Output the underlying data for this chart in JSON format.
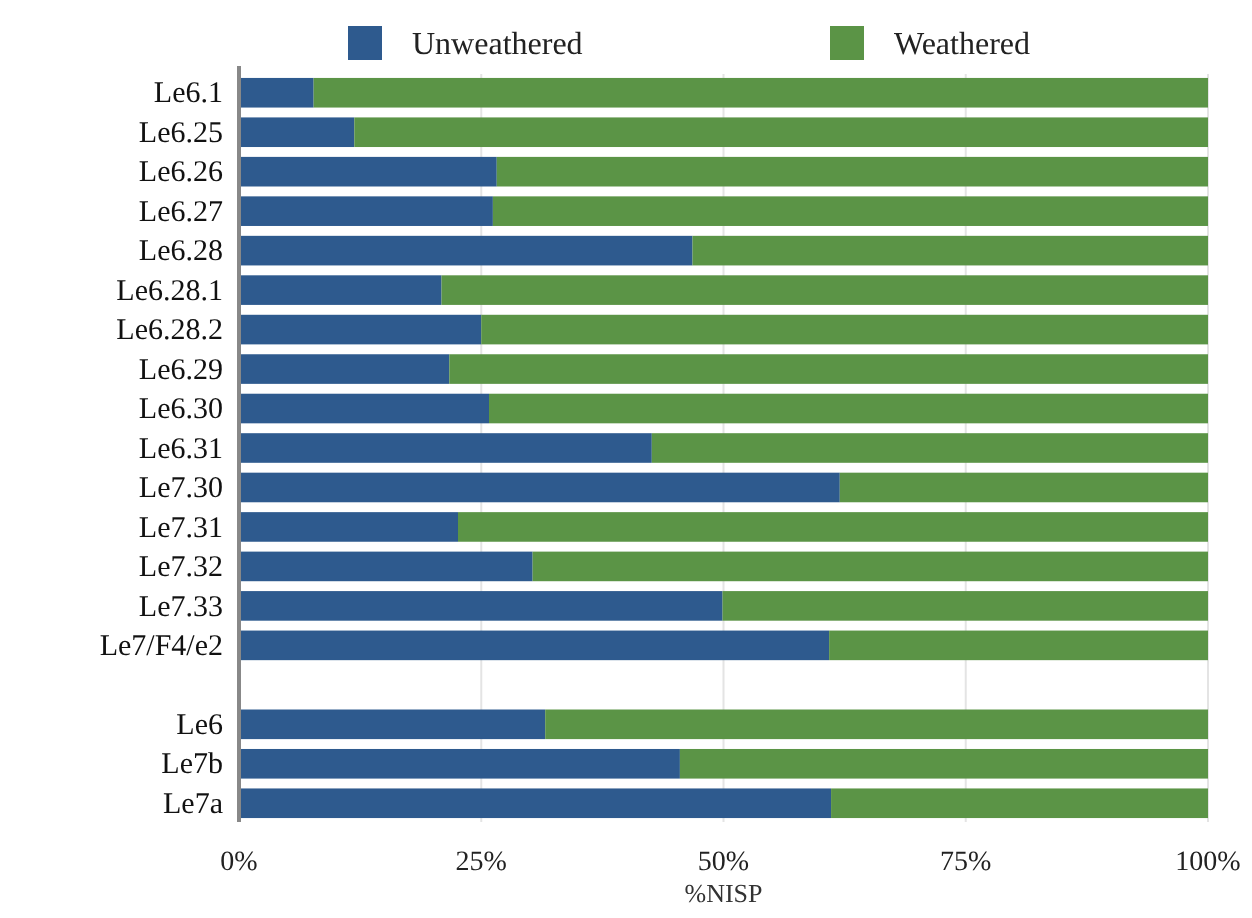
{
  "chart_data": {
    "type": "bar",
    "orientation": "horizontal",
    "stacked": true,
    "xlabel": "%NISP",
    "categories": [
      "Le6.1",
      "Le6.25",
      "Le6.26",
      "Le6.27",
      "Le6.28",
      "Le6.28.1",
      "Le6.28.2",
      "Le6.29",
      "Le6.30",
      "Le6.31",
      "Le7.30",
      "Le7.31",
      "Le7.32",
      "Le7.33",
      "Le7/F4/e2",
      null,
      "Le6",
      "Le7b",
      "Le7a"
    ],
    "series": [
      {
        "name": "Unweathered",
        "color": "#2e5a8e",
        "values": [
          7.7,
          11.9,
          26.6,
          26.2,
          46.8,
          20.9,
          25.0,
          21.7,
          25.8,
          42.6,
          62.0,
          22.6,
          30.3,
          49.9,
          60.9,
          null,
          31.6,
          45.5,
          61.1
        ]
      },
      {
        "name": "Weathered",
        "color": "#5b9446",
        "values": [
          92.3,
          88.1,
          73.4,
          73.8,
          53.2,
          79.1,
          75.0,
          78.3,
          74.2,
          57.4,
          38.0,
          77.4,
          69.7,
          50.1,
          39.1,
          null,
          68.4,
          54.5,
          38.9
        ]
      }
    ],
    "xlim": [
      0,
      100
    ],
    "xticks": [
      {
        "value": 0,
        "label": "0%"
      },
      {
        "value": 25,
        "label": "25%"
      },
      {
        "value": 50,
        "label": "50%"
      },
      {
        "value": 75,
        "label": "75%"
      },
      {
        "value": 100,
        "label": "100%"
      }
    ],
    "grid": "x",
    "legend": "top"
  }
}
